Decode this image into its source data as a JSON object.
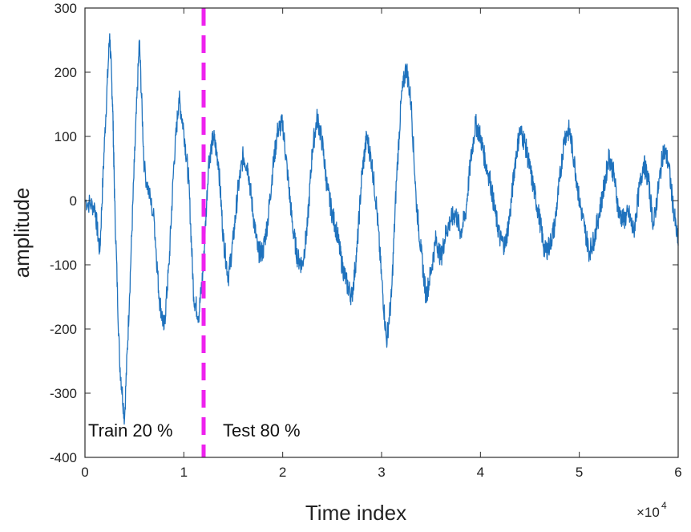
{
  "chart_data": {
    "type": "line",
    "xlabel": "Time index",
    "ylabel": "amplitude",
    "x_exponent_label": "×10",
    "x_exponent_power": "4",
    "xlim": [
      0,
      6
    ],
    "ylim": [
      -400,
      300
    ],
    "xticks": [
      0,
      1,
      2,
      3,
      4,
      5,
      6
    ],
    "xtick_labels": [
      "0",
      "1",
      "2",
      "3",
      "4",
      "5",
      "6"
    ],
    "yticks": [
      300,
      200,
      100,
      0,
      -100,
      -200,
      -300,
      -400
    ],
    "ytick_labels": [
      "300",
      "200",
      "100",
      "0",
      "-100",
      "-200",
      "-300",
      "-400"
    ],
    "grid": false,
    "colors": {
      "series": "#1f72bd",
      "split": "#ee22ee"
    },
    "split": {
      "x": 1.2,
      "style": "dashed"
    },
    "annotations": {
      "train": "Train 20 %",
      "test": "Test 80 %"
    },
    "series": [
      {
        "x": [
          0,
          0.1,
          0.15,
          0.2,
          0.25,
          0.28,
          0.3,
          0.35,
          0.4,
          0.45,
          0.5,
          0.55,
          0.6,
          0.7,
          0.75,
          0.8,
          0.85,
          0.9,
          0.95,
          1.0,
          1.05,
          1.1,
          1.15,
          1.2,
          1.25,
          1.3,
          1.35,
          1.4,
          1.45,
          1.5,
          1.55,
          1.6,
          1.65,
          1.7,
          1.75,
          1.8,
          1.85,
          1.9,
          1.95,
          2.0,
          2.05,
          2.1,
          2.15,
          2.2,
          2.25,
          2.3,
          2.35,
          2.4,
          2.45,
          2.5,
          2.55,
          2.6,
          2.65,
          2.7,
          2.75,
          2.8,
          2.85,
          2.9,
          2.95,
          3.0,
          3.05,
          3.1,
          3.15,
          3.2,
          3.25,
          3.3,
          3.35,
          3.4,
          3.45,
          3.5,
          3.55,
          3.6,
          3.65,
          3.7,
          3.75,
          3.8,
          3.85,
          3.9,
          3.95,
          4.0,
          4.05,
          4.1,
          4.15,
          4.2,
          4.25,
          4.3,
          4.35,
          4.4,
          4.45,
          4.5,
          4.55,
          4.6,
          4.65,
          4.7,
          4.75,
          4.8,
          4.85,
          4.9,
          4.95,
          5.0,
          5.05,
          5.1,
          5.15,
          5.2,
          5.25,
          5.3,
          5.35,
          5.4,
          5.45,
          5.5,
          5.55,
          5.6,
          5.65,
          5.7,
          5.75,
          5.8,
          5.85,
          5.9,
          5.95,
          6.0
        ],
        "y": [
          0,
          -10,
          -80,
          100,
          260,
          150,
          0,
          -250,
          -340,
          -150,
          60,
          250,
          50,
          -30,
          -150,
          -200,
          -100,
          60,
          160,
          110,
          30,
          -150,
          -180,
          -100,
          60,
          100,
          60,
          -60,
          -120,
          -60,
          20,
          70,
          50,
          -20,
          -80,
          -80,
          -30,
          50,
          110,
          120,
          40,
          -40,
          -90,
          -100,
          -40,
          80,
          130,
          90,
          20,
          -20,
          -50,
          -100,
          -130,
          -150,
          -80,
          40,
          100,
          60,
          -10,
          -120,
          -220,
          -150,
          30,
          160,
          210,
          150,
          0,
          -80,
          -150,
          -110,
          -60,
          -90,
          -50,
          -30,
          -20,
          -50,
          -20,
          60,
          120,
          100,
          60,
          30,
          -20,
          -60,
          -70,
          -20,
          60,
          110,
          90,
          50,
          10,
          -30,
          -80,
          -70,
          -40,
          30,
          100,
          110,
          60,
          0,
          -40,
          -80,
          -60,
          -20,
          20,
          70,
          40,
          -20,
          -30,
          -20,
          -50,
          10,
          60,
          30,
          -40,
          20,
          80,
          60,
          -10,
          -70
        ]
      }
    ]
  }
}
